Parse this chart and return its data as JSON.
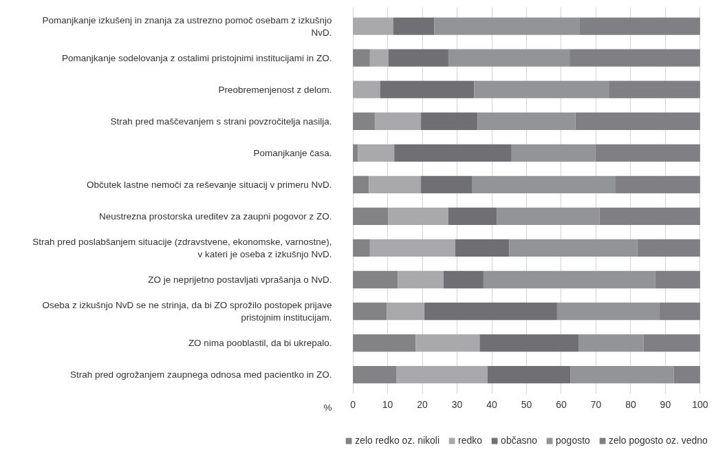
{
  "chart_data": {
    "type": "bar",
    "orientation": "horizontal",
    "stacked": true,
    "xlabel": "%",
    "categories": [
      "Pomanjkanje izkušenj in znanja za ustrezno pomoč osebam z izkušnjo NvD.",
      "Pomanjkanje sodelovanja z ostalimi pristojnimi institucijami in ZO.",
      "Preobremenjenost z delom.",
      "Strah pred maščevanjem s strani povzročitelja nasilja.",
      "Pomanjkanje časa.",
      "Občutek lastne nemoči za reševanje situacij v primeru NvD.",
      "Neustrezna prostorska ureditev za zaupni pogovor z ZO.",
      "Strah pred poslabšanjem situacije (zdravstvene, ekonomske, varnostne), v kateri je oseba z izkušnjo NvD.",
      "ZO je neprijetno postavljati vprašanja o NvD.",
      "Oseba z izkušnjo NvD se ne strinja, da bi ZO sprožilo postopek prijave pristojnim institucijam.",
      "ZO nima pooblastil, da bi ukrepalo.",
      "Strah pred ogrožanjem zaupnega odnosa med pacientko in ZO."
    ],
    "series": [
      {
        "name": "zelo redko oz. nikoli",
        "color": "#838386",
        "values": [
          0,
          4.9,
          0,
          6.3,
          1.4,
          4.6,
          10.2,
          4.9,
          12.9,
          9.7,
          18.1,
          12.6
        ]
      },
      {
        "name": "redko",
        "color": "#a9a9ac",
        "values": [
          11.6,
          5.3,
          7.8,
          13.3,
          10.5,
          15.0,
          17.3,
          24.6,
          13.2,
          10.9,
          18.4,
          26.2
        ]
      },
      {
        "name": "občasno",
        "color": "#707074",
        "values": [
          11.8,
          17.3,
          27.1,
          16.3,
          33.8,
          14.8,
          14.0,
          15.5,
          11.5,
          38.2,
          28.6,
          23.9
        ]
      },
      {
        "name": "pogosto",
        "color": "#939497",
        "values": [
          41.8,
          34.9,
          38.8,
          28.2,
          24.1,
          41.1,
          29.5,
          36.9,
          49.5,
          29.4,
          18.6,
          29.7
        ]
      },
      {
        "name": "zelo pogosto oz. vedno",
        "color": "#808084",
        "values": [
          34.8,
          37.6,
          26.3,
          35.9,
          30.2,
          24.5,
          29.0,
          18.1,
          12.9,
          11.8,
          16.3,
          7.6
        ]
      }
    ],
    "xlim": [
      0,
      100
    ],
    "xticks": [
      0,
      10,
      20,
      30,
      40,
      50,
      60,
      70,
      80,
      90,
      100
    ],
    "grid": "x",
    "legend": "bottom"
  }
}
